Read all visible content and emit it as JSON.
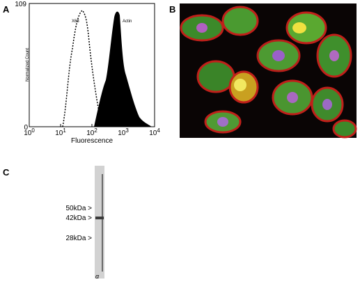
{
  "panels": {
    "a": {
      "label": "A",
      "y_top": "109",
      "y_bottom": "0",
      "y_title": "Normalized Count",
      "x_title": "Fluorescence",
      "x_ticks": [
        {
          "base": "10",
          "exp": "0"
        },
        {
          "base": "10",
          "exp": "1"
        },
        {
          "base": "10",
          "exp": "2"
        },
        {
          "base": "10",
          "exp": "3"
        },
        {
          "base": "10",
          "exp": "4"
        }
      ],
      "curve_labels": [
        "X63",
        "Actin"
      ]
    },
    "b": {
      "label": "B"
    },
    "c": {
      "label": "C",
      "markers": [
        "50kDa >",
        "42kDa >",
        "28kDa >"
      ],
      "lane": "α"
    }
  }
}
